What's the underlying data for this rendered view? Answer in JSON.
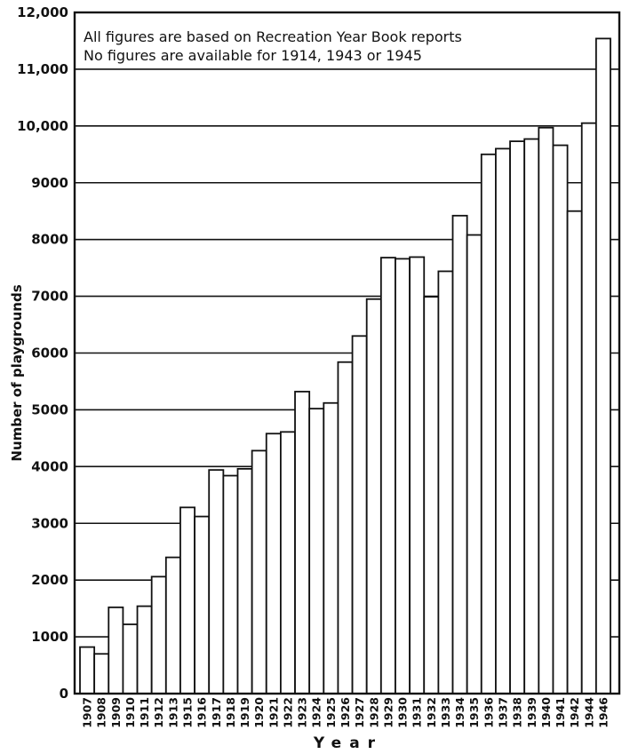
{
  "chart_data": {
    "type": "bar",
    "title": "",
    "notes": [
      "All figures are based on Recreation Year Book reports",
      "No figures are available for 1914, 1943 or 1945"
    ],
    "xlabel": "Year",
    "ylabel": "Number of playgrounds",
    "ylim": [
      0,
      12000
    ],
    "yticks": [
      0,
      1000,
      2000,
      3000,
      4000,
      5000,
      6000,
      7000,
      8000,
      9000,
      10000,
      11000,
      12000
    ],
    "ytick_labels": [
      "0",
      "1000",
      "2000",
      "3000",
      "4000",
      "5000",
      "6000",
      "7000",
      "8000",
      "9000",
      "10,000",
      "11,000",
      "12,000"
    ],
    "grid": true,
    "categories": [
      "1907",
      "1908",
      "1909",
      "1910",
      "1911",
      "1912",
      "1913",
      "1915",
      "1916",
      "1917",
      "1918",
      "1919",
      "1920",
      "1921",
      "1922",
      "1923",
      "1924",
      "1925",
      "1926",
      "1927",
      "1928",
      "1929",
      "1930",
      "1931",
      "1932",
      "1933",
      "1934",
      "1935",
      "1936",
      "1937",
      "1938",
      "1939",
      "1940",
      "1941",
      "1942",
      "1944",
      "1946"
    ],
    "values": [
      820,
      700,
      1520,
      1220,
      1540,
      2060,
      2400,
      3280,
      3120,
      3940,
      3840,
      3960,
      4280,
      4580,
      4610,
      5320,
      5020,
      5120,
      5840,
      6300,
      6950,
      7680,
      7660,
      7690,
      6990,
      7440,
      8420,
      8080,
      9500,
      9600,
      9730,
      9770,
      9970,
      9660,
      8500,
      10050,
      11540
    ],
    "bar_color": "#ffffff",
    "edge_color": "#111111"
  }
}
